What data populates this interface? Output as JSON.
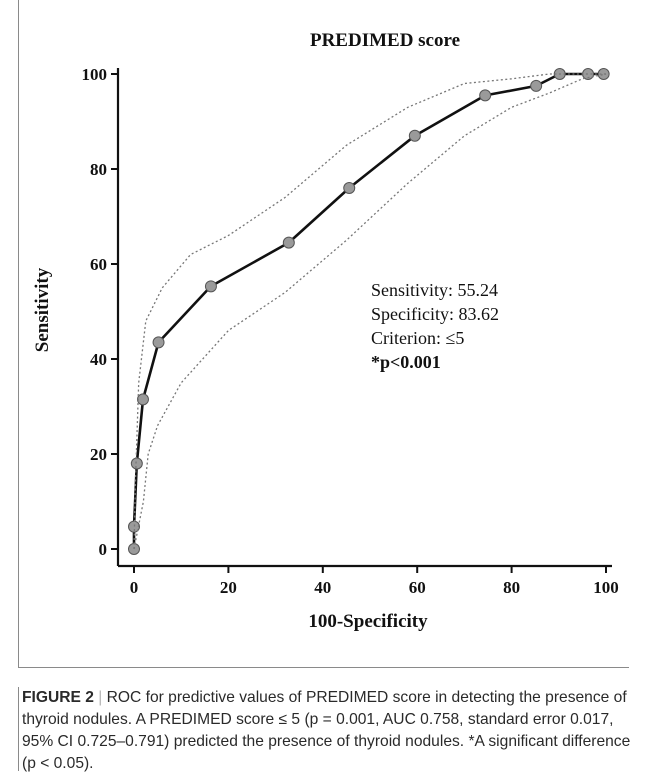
{
  "caption": {
    "label": "FIGURE 2",
    "separator": " | ",
    "text": "ROC for predictive values of PREDIMED score in detecting the presence of thyroid nodules. A PREDIMED score ≤ 5 (p = 0.001, AUC 0.758, standard error 0.017, 95% CI 0.725–0.791) predicted the presence of thyroid nodules. *A significant difference (p < 0.05)."
  },
  "chart_data": {
    "type": "line",
    "title": "PREDIMED score",
    "xlabel": "100-Specificity",
    "ylabel": "Sensitivity",
    "xlim": [
      0,
      100
    ],
    "ylim": [
      0,
      100
    ],
    "x_ticks": [
      0,
      20,
      40,
      60,
      80,
      100
    ],
    "y_ticks": [
      0,
      20,
      40,
      60,
      80,
      100
    ],
    "grid": false,
    "series": [
      {
        "role": "roc",
        "style": "solid-with-markers",
        "color": "#111111",
        "marker_color": "#9a9a9a",
        "x": [
          0,
          0,
          0.6,
          1.9,
          5.2,
          16.3,
          32.8,
          45.6,
          59.5,
          74.4,
          85.2,
          90.2,
          96.2,
          99.5
        ],
        "y": [
          0,
          4.7,
          18.0,
          31.5,
          43.5,
          55.3,
          64.5,
          76.0,
          87.0,
          95.5,
          97.5,
          100,
          100,
          100
        ]
      },
      {
        "role": "ci-upper",
        "style": "dotted",
        "color": "#777777",
        "x": [
          0,
          0.3,
          1.0,
          2.5,
          6,
          12,
          20,
          32,
          45,
          58,
          70,
          80,
          88,
          95,
          100
        ],
        "y": [
          0,
          14,
          35,
          48,
          55,
          62,
          66,
          74,
          85,
          93,
          98,
          99,
          100,
          100,
          100
        ]
      },
      {
        "role": "ci-lower",
        "style": "dotted",
        "color": "#777777",
        "x": [
          0,
          2,
          3,
          5,
          10,
          20,
          32,
          45,
          58,
          70,
          80,
          88,
          95,
          100
        ],
        "y": [
          0,
          10,
          20,
          26,
          35,
          46,
          54,
          65,
          77,
          87,
          93,
          96,
          99,
          100
        ]
      }
    ],
    "annotations": [
      "Sensitivity: 55.24",
      "Specificity: 83.62",
      "Criterion: ≤5",
      "*p<0.001"
    ]
  }
}
